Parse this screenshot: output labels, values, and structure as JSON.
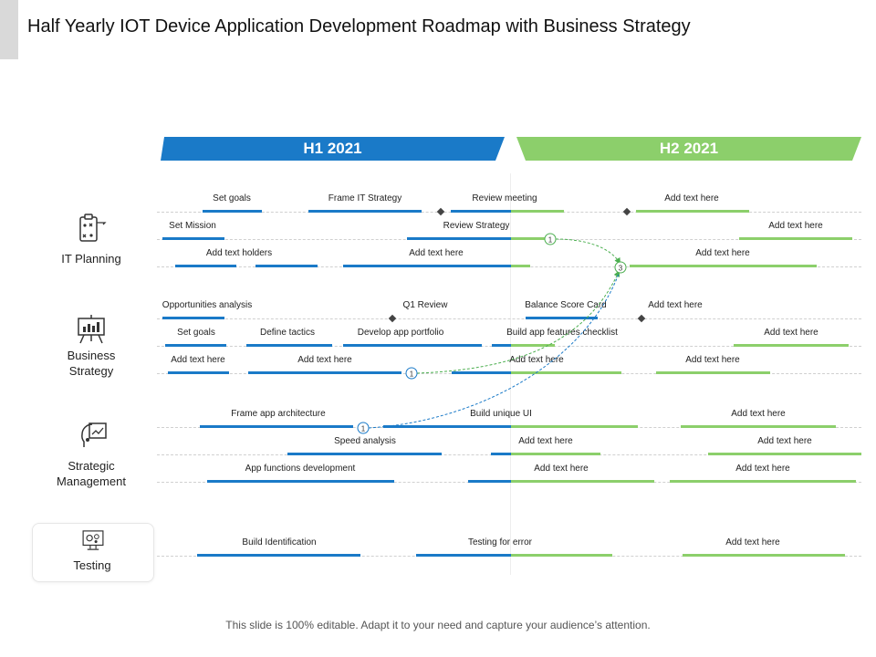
{
  "title": "Half Yearly IOT Device Application Development Roadmap with Business Strategy",
  "periods": [
    {
      "label": "H1 2021",
      "color": "#1a7ac8"
    },
    {
      "label": "H2 2021",
      "color": "#8ccf6b"
    }
  ],
  "categories": [
    {
      "name": "IT Planning",
      "icon": "clipboard-strategy-icon"
    },
    {
      "name": "Business\nStrategy",
      "icon": "presentation-board-icon"
    },
    {
      "name": "Strategic\nManagement",
      "icon": "strategy-head-icon"
    },
    {
      "name": "Testing",
      "icon": "monitor-gear-icon"
    }
  ],
  "tasks": {
    "it_planning": [
      "Set goals",
      "Frame IT Strategy",
      "Review meeting",
      "Add text here",
      "Set Mission",
      "Review Strategy",
      "Add text here",
      "Add text holders",
      "Add text here",
      "Add text here"
    ],
    "business_strategy": [
      "Opportunities analysis",
      "Q1 Review",
      "Balance Score Card",
      "Add text here",
      "Set goals",
      "Define tactics",
      "Develop app portfolio",
      "Build app features checklist",
      "Add text here",
      "Add text here",
      "Add text here",
      "Add text here",
      "Add text here"
    ],
    "strategic_management": [
      "Frame app architecture",
      "Build unique UI",
      "Add text here",
      "Speed analysis",
      "Add text here",
      "Add text here",
      "App functions development",
      "Add text here",
      "Add text here"
    ],
    "testing": [
      "Build Identification",
      "Testing for error",
      "Add text here"
    ]
  },
  "milestones": [
    "1",
    "3",
    "1",
    "1"
  ],
  "colors": {
    "h1": "#1a7ac8",
    "h2": "#8ccf6b",
    "connector": "#4caf50"
  },
  "footer": "This slide is 100% editable. Adapt it to your need and capture your audience’s attention."
}
